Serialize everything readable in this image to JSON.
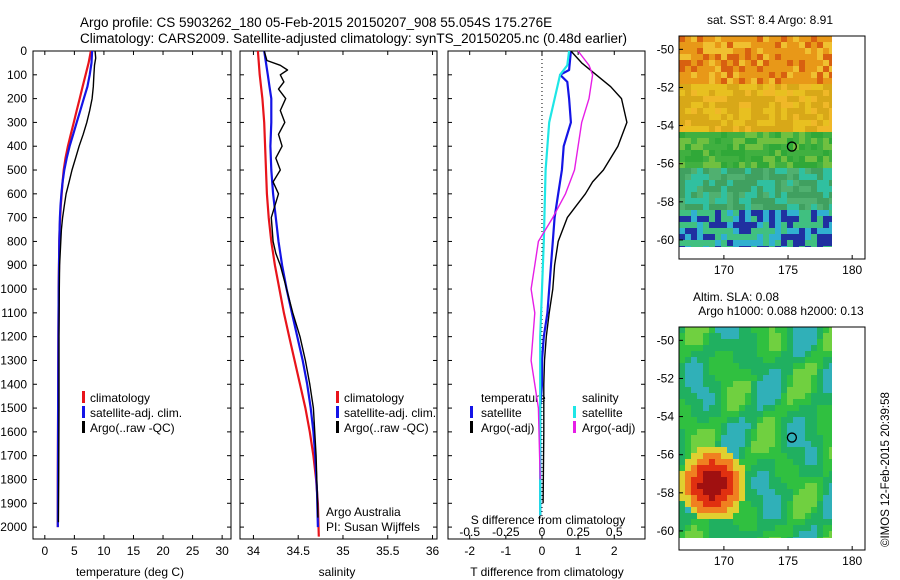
{
  "header": {
    "line1": "Argo profile: CS 5903262_180 05-Feb-2015 20150207_908 55.054S 175.276E",
    "line2": "Climatology: CARS2009. Satellite-adjusted climatology: synTS_20150205.nc (0.48d earlier)"
  },
  "colors": {
    "red": "#e8141b",
    "blue": "#1414e6",
    "black": "#000000",
    "cyan": "#1ee6e6",
    "magenta": "#e61ee6"
  },
  "chart_data": [
    {
      "type": "line",
      "xlabel": "temperature (deg C)",
      "xlim": [
        -2,
        31.5
      ],
      "ylim": [
        2050,
        0
      ],
      "xticks": [
        0,
        5,
        10,
        15,
        20,
        25,
        30
      ],
      "yticks": [
        0,
        100,
        200,
        300,
        400,
        500,
        600,
        700,
        800,
        900,
        1000,
        1100,
        1200,
        1300,
        1400,
        1500,
        1600,
        1700,
        1800,
        1900,
        2000
      ],
      "legend": [
        "climatology",
        "satellite-adj. clim.",
        "Argo(..raw -QC)"
      ],
      "series": [
        {
          "color": "red",
          "x": [
            7.8,
            7.4,
            6.9,
            6.4,
            5.9,
            5.4,
            4.9,
            4.4,
            3.9,
            3.5,
            3.2,
            3.0,
            2.85,
            2.7,
            2.6,
            2.5,
            2.45,
            2.4,
            2.35,
            2.3,
            2.25,
            2.2,
            2.2
          ],
          "y": [
            0,
            50,
            100,
            150,
            200,
            250,
            300,
            350,
            400,
            450,
            500,
            550,
            600,
            650,
            700,
            750,
            800,
            900,
            1000,
            1200,
            1500,
            1800,
            2000
          ]
        },
        {
          "color": "blue",
          "x": [
            8.0,
            7.9,
            7.6,
            7.2,
            6.6,
            6.0,
            5.4,
            4.8,
            4.2,
            3.7,
            3.3,
            3.0,
            2.8,
            2.65,
            2.55,
            2.5,
            2.45,
            2.4,
            2.35,
            2.3,
            2.25,
            2.2
          ],
          "y": [
            0,
            50,
            100,
            150,
            200,
            250,
            300,
            350,
            400,
            450,
            500,
            550,
            600,
            650,
            700,
            750,
            800,
            900,
            1000,
            1200,
            1500,
            2000
          ]
        },
        {
          "color": "black",
          "x": [
            8.5,
            8.6,
            8.4,
            8.3,
            8.2,
            8.0,
            7.6,
            7.1,
            6.5,
            5.8,
            5.2,
            4.6,
            4.1,
            3.6,
            3.3,
            3.0,
            2.8,
            2.7,
            2.6,
            2.5,
            2.45,
            2.4,
            2.4,
            2.35,
            2.3
          ],
          "y": [
            0,
            30,
            60,
            100,
            150,
            200,
            250,
            300,
            350,
            400,
            450,
            500,
            550,
            600,
            650,
            700,
            750,
            800,
            850,
            900,
            1000,
            1200,
            1500,
            1800,
            1980
          ]
        }
      ]
    },
    {
      "type": "line",
      "xlabel": "salinity",
      "xlim": [
        33.85,
        36.05
      ],
      "ylim": [
        2050,
        0
      ],
      "xticks": [
        34,
        34.5,
        35,
        35.5,
        36
      ],
      "legend": [
        "climatology",
        "satellite-adj. clim.",
        "Argo(..raw -QC)"
      ],
      "annotation": [
        "Argo Australia",
        "PI: Susan Wijffels"
      ],
      "series": [
        {
          "color": "red",
          "x": [
            34.05,
            34.07,
            34.1,
            34.12,
            34.13,
            34.14,
            34.15,
            34.17,
            34.2,
            34.24,
            34.29,
            34.34,
            34.4,
            34.46,
            34.52,
            34.58,
            34.63,
            34.67,
            34.7,
            34.72,
            34.73
          ],
          "y": [
            0,
            100,
            200,
            300,
            400,
            500,
            600,
            700,
            800,
            900,
            1000,
            1100,
            1200,
            1300,
            1400,
            1500,
            1600,
            1700,
            1800,
            1900,
            2040
          ]
        },
        {
          "color": "blue",
          "x": [
            34.12,
            34.14,
            34.16,
            34.18,
            34.2,
            34.2,
            34.19,
            34.2,
            34.22,
            34.25,
            34.28,
            34.32,
            34.37,
            34.43,
            34.49,
            34.55,
            34.6,
            34.64,
            34.67,
            34.69,
            34.71,
            34.72
          ],
          "y": [
            0,
            50,
            100,
            150,
            200,
            300,
            400,
            500,
            600,
            700,
            800,
            900,
            1000,
            1100,
            1200,
            1300,
            1400,
            1500,
            1600,
            1700,
            1850,
            2000
          ]
        },
        {
          "color": "black",
          "x": [
            34.12,
            34.15,
            34.3,
            34.38,
            34.3,
            34.34,
            34.28,
            34.36,
            34.3,
            34.35,
            34.28,
            34.32,
            34.25,
            34.3,
            34.22,
            34.28,
            34.2,
            34.22,
            34.25,
            34.3,
            34.37,
            34.44,
            34.52,
            34.58,
            34.63,
            34.67,
            34.7,
            34.72
          ],
          "y": [
            0,
            40,
            60,
            80,
            100,
            130,
            160,
            200,
            250,
            300,
            350,
            400,
            450,
            500,
            550,
            600,
            700,
            800,
            850,
            900,
            1000,
            1100,
            1200,
            1300,
            1400,
            1500,
            1700,
            1960
          ]
        }
      ]
    },
    {
      "type": "line",
      "xlabel": "T difference from climatology",
      "xlabel2": "S difference from climatology",
      "xlim": [
        -2.6,
        2.85
      ],
      "ylim": [
        2050,
        0
      ],
      "xticks": [
        -2,
        -1,
        0,
        1,
        2
      ],
      "xticks2_labels": [
        "-0.5",
        "-0.25",
        "0",
        "0.25",
        "0.5"
      ],
      "xticks2": [
        -2,
        -1,
        0,
        1,
        2
      ],
      "legend_titles": [
        "temperature",
        "salinity"
      ],
      "legend": [
        "satellite",
        "Argo(-adj)",
        "satellite",
        "Argo(-adj)"
      ],
      "series": [
        {
          "color": "blue",
          "name": "satellite",
          "x": [
            0.8,
            0.75,
            0.5,
            0.7,
            0.75,
            0.8,
            0.6,
            0.55,
            0.45,
            0.35,
            0.3,
            0.25,
            0.2,
            0.15,
            0.05,
            0.0,
            0.0,
            -0.05,
            -0.05,
            -0.05,
            -0.05,
            -0.05
          ],
          "y": [
            0,
            80,
            100,
            130,
            200,
            300,
            400,
            500,
            600,
            700,
            800,
            900,
            1000,
            1100,
            1200,
            1300,
            1400,
            1500,
            1600,
            1700,
            1800,
            1950
          ]
        },
        {
          "color": "black",
          "name": "Argo(-adj)",
          "x": [
            0.8,
            1.1,
            1.5,
            1.9,
            2.2,
            2.35,
            2.1,
            1.7,
            1.4,
            1.2,
            0.95,
            0.7,
            0.45,
            0.35,
            0.3,
            0.2,
            0.12,
            0.07,
            0.05,
            0.05,
            0.03
          ],
          "y": [
            0,
            50,
            100,
            150,
            200,
            300,
            400,
            500,
            550,
            600,
            650,
            700,
            800,
            900,
            1000,
            1100,
            1200,
            1300,
            1400,
            1600,
            1900
          ]
        },
        {
          "color": "cyan",
          "name": "satellite",
          "x": [
            0.75,
            0.7,
            0.5,
            0.2,
            0.1,
            0.05,
            0.0,
            -0.05,
            -0.05,
            -0.05,
            -0.05
          ],
          "y": [
            0,
            60,
            100,
            300,
            500,
            800,
            1000,
            1200,
            1400,
            1700,
            1950
          ]
        },
        {
          "color": "magenta",
          "name": "Argo(-adj)",
          "x": [
            1.0,
            1.3,
            1.4,
            1.3,
            1.1,
            1.0,
            0.9,
            0.65,
            0.3,
            -0.1,
            -0.2,
            -0.3,
            -0.2,
            -0.3,
            -0.1,
            -0.05
          ],
          "y": [
            0,
            60,
            100,
            200,
            300,
            400,
            500,
            600,
            700,
            800,
            900,
            1000,
            1100,
            1300,
            1500,
            1800
          ]
        }
      ]
    },
    {
      "type": "heatmap",
      "title": "sat. SST: 8.4 Argo: 8.91",
      "xlim": [
        166.5,
        181
      ],
      "ylim": [
        -61,
        -49.3
      ],
      "xticks": [
        170,
        175,
        180
      ],
      "yticks": [
        -50,
        -52,
        -54,
        -56,
        -58,
        -60
      ],
      "marker": [
        175.3,
        -55.1
      ]
    },
    {
      "type": "heatmap",
      "title": "Altim. SLA: 0.08",
      "subtitle": "Argo h1000: 0.088 h2000: 0.13",
      "xlim": [
        166.5,
        181
      ],
      "ylim": [
        -61,
        -49.3
      ],
      "xticks": [
        170,
        175,
        180
      ],
      "yticks": [
        -50,
        -52,
        -54,
        -56,
        -58,
        -60
      ],
      "marker": [
        175.3,
        -55.1
      ]
    }
  ],
  "credit": "©IMOS 12-Feb-2015 20:39:58"
}
